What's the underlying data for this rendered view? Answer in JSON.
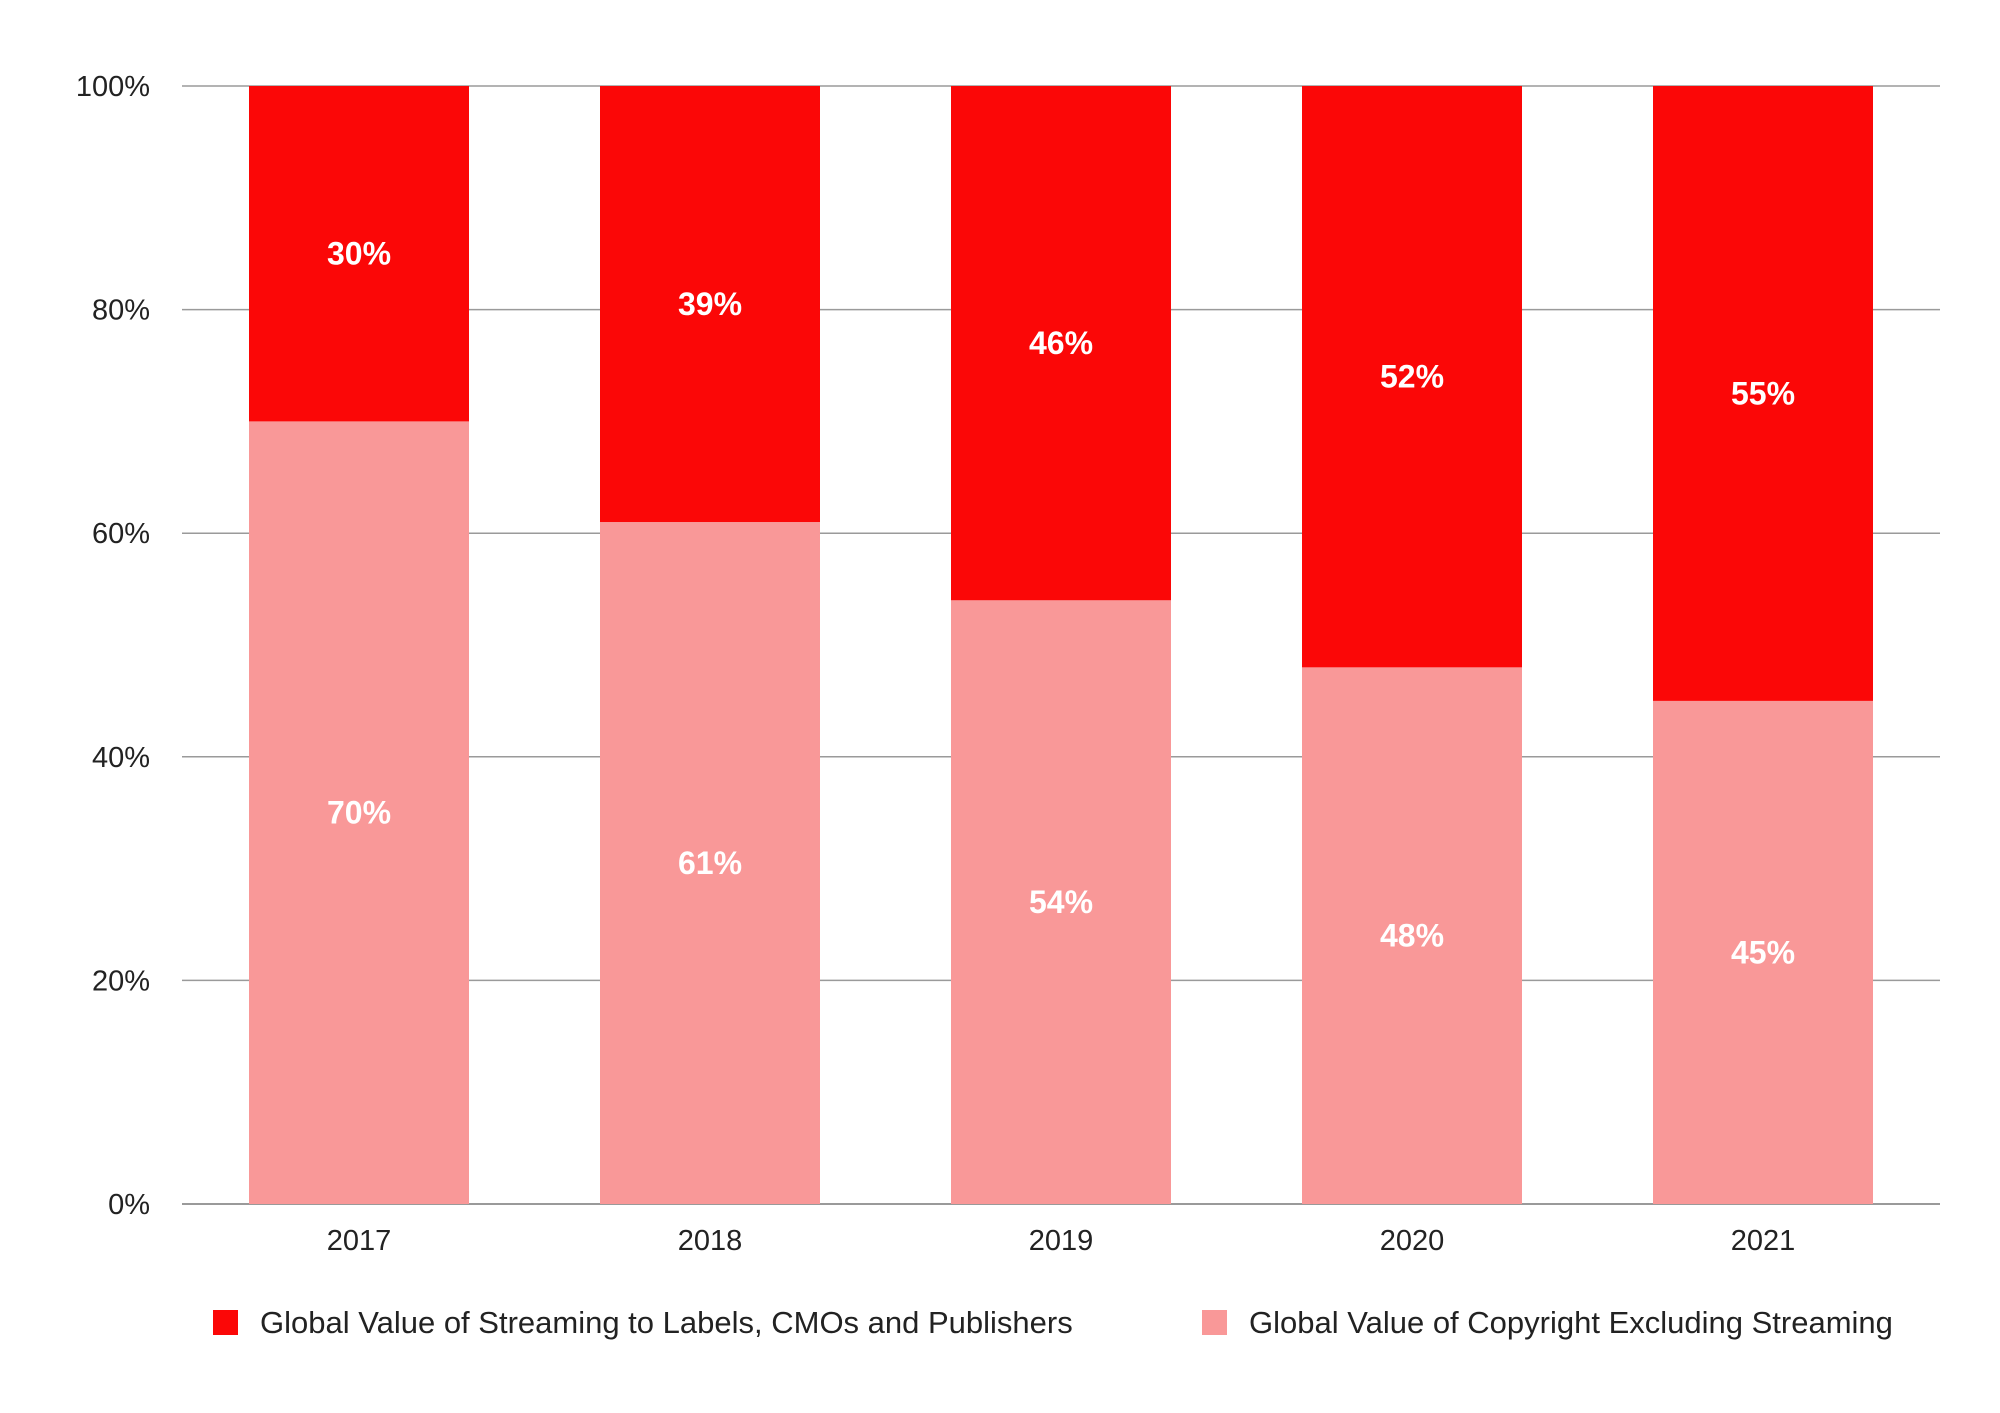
{
  "chart_data": {
    "type": "bar",
    "stacked": true,
    "categories": [
      "2017",
      "2018",
      "2019",
      "2020",
      "2021"
    ],
    "series": [
      {
        "name": "Global Value of Copyright Excluding Streaming",
        "values": [
          70,
          61,
          54,
          48,
          45
        ],
        "labels": [
          "70%",
          "61%",
          "54%",
          "48%",
          "45%"
        ],
        "color": "#f99898"
      },
      {
        "name": "Global Value of Streaming to Labels, CMOs and Publishers",
        "values": [
          30,
          39,
          46,
          52,
          55
        ],
        "labels": [
          "30%",
          "39%",
          "46%",
          "52%",
          "55%"
        ],
        "color": "#fb0707"
      }
    ],
    "yticks": [
      "0%",
      "20%",
      "40%",
      "60%",
      "80%",
      "100%"
    ],
    "ylim": [
      0,
      100
    ],
    "grid": true,
    "legend": {
      "position": "bottom",
      "entries": [
        {
          "label": "Global Value of Streaming to Labels, CMOs and Publishers",
          "color": "#fb0707"
        },
        {
          "label": "Global Value of Copyright Excluding Streaming",
          "color": "#f99898"
        }
      ]
    }
  }
}
